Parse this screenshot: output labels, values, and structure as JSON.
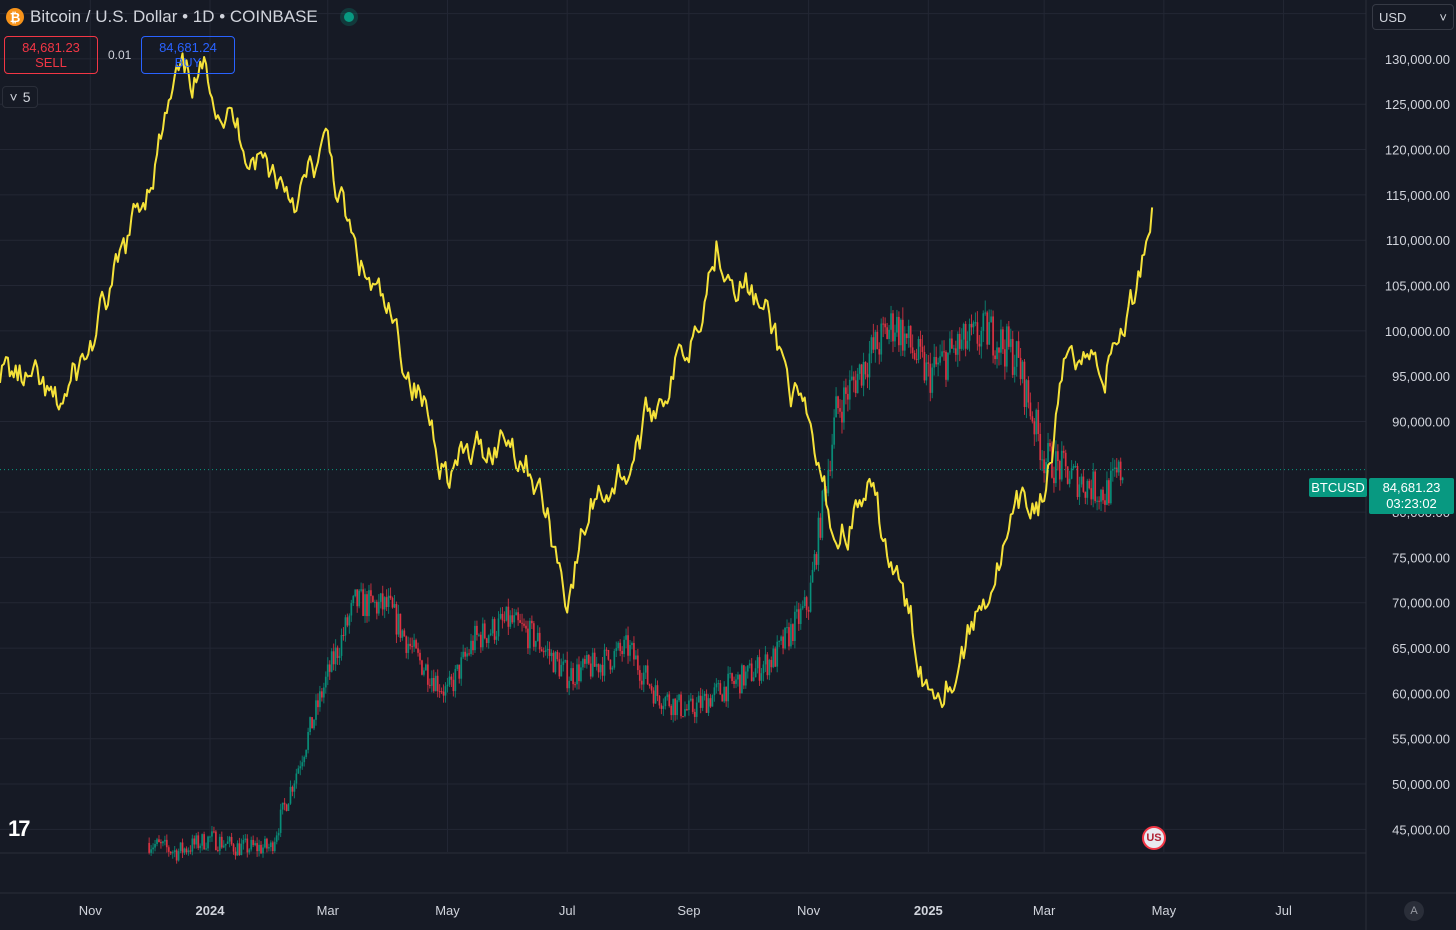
{
  "header": {
    "title": "Bitcoin / U.S. Dollar • 1D • COINBASE",
    "logo_letter": "₿"
  },
  "trade": {
    "sell_price": "84,681.23",
    "sell_label": "SELL",
    "spread": "0.01",
    "buy_price": "84,681.24",
    "buy_label": "BUY"
  },
  "indicators_toggle": {
    "count": "5",
    "chevron": "˅"
  },
  "currency_selector": {
    "value": "USD",
    "chevron": "˅"
  },
  "tradingview_logo": "17",
  "symbol_tag": "BTCUSD",
  "last_price": {
    "value": "84,681.23",
    "countdown": "03:23:02"
  },
  "auto_scale_button": "A",
  "flag_badge": "US",
  "colors": {
    "background": "#161a25",
    "grid": "#232734",
    "overlay_line": "#f5e23a",
    "up": "#089981",
    "down": "#f23645",
    "label": "#d1d4dc"
  },
  "chart_data": {
    "type": "line",
    "y_axis": {
      "ticks": [
        "135,000.00",
        "130,000.00",
        "125,000.00",
        "120,000.00",
        "115,000.00",
        "110,000.00",
        "105,000.00",
        "100,000.00",
        "95,000.00",
        "90,000.00",
        "80,000.00",
        "75,000.00",
        "70,000.00",
        "65,000.00",
        "60,000.00",
        "55,000.00",
        "50,000.00",
        "45,000.00"
      ],
      "tick_values": [
        135000,
        130000,
        125000,
        120000,
        115000,
        110000,
        105000,
        100000,
        95000,
        90000,
        80000,
        75000,
        70000,
        65000,
        60000,
        55000,
        50000,
        45000
      ],
      "ylim": [
        42500,
        136500
      ],
      "current_price_line": 84681.23
    },
    "x_axis": {
      "ticks": [
        "Nov",
        "2024",
        "Mar",
        "May",
        "Jul",
        "Sep",
        "Nov",
        "2025",
        "Mar",
        "May",
        "Jul"
      ],
      "tick_dates": [
        "2023-11-01",
        "2024-01-01",
        "2024-03-01",
        "2024-05-01",
        "2024-07-01",
        "2024-09-01",
        "2024-11-01",
        "2025-01-01",
        "2025-03-01",
        "2025-05-01",
        "2025-07-01"
      ],
      "xlim": [
        "2023-09-16",
        "2025-08-12"
      ]
    },
    "grid": true,
    "series": [
      {
        "kind": "candlestick",
        "note_for_render": "daily BTC/USD candles, close values",
        "dates": [
          "2023-12-01",
          "2023-12-15",
          "2024-01-01",
          "2024-01-15",
          "2024-02-01",
          "2024-02-15",
          "2024-03-01",
          "2024-03-15",
          "2024-04-01",
          "2024-04-15",
          "2024-05-01",
          "2024-05-15",
          "2024-06-01",
          "2024-06-15",
          "2024-07-01",
          "2024-07-15",
          "2024-08-01",
          "2024-08-15",
          "2024-09-01",
          "2024-09-15",
          "2024-10-01",
          "2024-10-15",
          "2024-11-01",
          "2024-11-15",
          "2024-12-01",
          "2024-12-15",
          "2025-01-01",
          "2025-01-15",
          "2025-02-01",
          "2025-02-15",
          "2025-03-01",
          "2025-03-15",
          "2025-04-01",
          "2025-04-10"
        ],
        "close": [
          43500,
          42500,
          44000,
          43000,
          43000,
          52000,
          62000,
          70000,
          69500,
          64000,
          60000,
          66000,
          68000,
          66000,
          62000,
          63000,
          65000,
          60000,
          58000,
          60000,
          62000,
          64000,
          70000,
          91000,
          97000,
          101000,
          95000,
          98000,
          100000,
          97000,
          86000,
          84000,
          82000,
          84681
        ]
      },
      {
        "kind": "overlay-line",
        "dates": [
          "2023-09-16",
          "2023-10-01",
          "2023-10-15",
          "2023-11-01",
          "2023-11-15",
          "2023-12-01",
          "2023-12-15",
          "2024-01-01",
          "2024-01-15",
          "2024-02-01",
          "2024-02-15",
          "2024-03-01",
          "2024-03-15",
          "2024-04-01",
          "2024-04-15",
          "2024-05-01",
          "2024-05-15",
          "2024-06-01",
          "2024-06-15",
          "2024-07-01",
          "2024-07-15",
          "2024-08-01",
          "2024-08-15",
          "2024-09-01",
          "2024-09-15",
          "2024-10-01",
          "2024-10-15",
          "2024-11-01",
          "2024-11-15",
          "2024-12-01",
          "2024-12-15",
          "2025-01-01",
          "2025-01-15",
          "2025-02-01",
          "2025-02-15",
          "2025-03-01",
          "2025-03-15",
          "2025-04-01",
          "2025-04-15",
          "2025-04-25"
        ],
        "values": [
          96000,
          94000,
          91000,
          98000,
          106000,
          117000,
          127000,
          128000,
          122000,
          118000,
          115000,
          120000,
          108000,
          101000,
          94000,
          85000,
          86000,
          89000,
          84000,
          71000,
          82000,
          85000,
          92000,
          99000,
          110000,
          105000,
          99000,
          88000,
          77000,
          82000,
          73000,
          61000,
          63000,
          72000,
          79000,
          82000,
          99000,
          96000,
          103000,
          114000
        ]
      }
    ]
  }
}
